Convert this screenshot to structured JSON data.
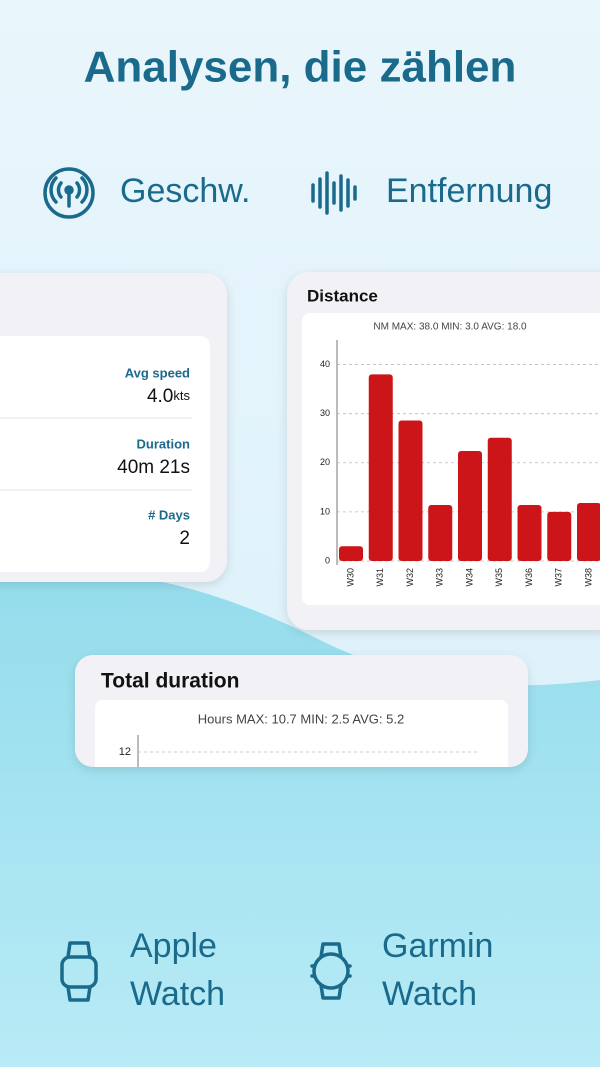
{
  "header": {
    "title": "Analysen, die zählen"
  },
  "features": [
    {
      "label": "Geschw."
    },
    {
      "label": "Entfernung"
    }
  ],
  "stats_card": {
    "rows": [
      {
        "label": "Avg speed",
        "value": "4.0",
        "unit": "kts"
      },
      {
        "label": "Duration",
        "value": "40m 21s"
      },
      {
        "label": "# Days",
        "value": "2"
      }
    ]
  },
  "distance_card": {
    "title": "Distance",
    "chart": {
      "type": "bar",
      "subtitle": "NM MAX: 38.0 MIN: 3.0 AVG: 18.0",
      "categories": [
        "W30",
        "W31",
        "W32",
        "W33",
        "W34",
        "W35",
        "W36",
        "W37",
        "W38"
      ],
      "values": [
        3,
        38,
        28.6,
        11.4,
        22.4,
        25.1,
        11.4,
        10,
        11.8
      ],
      "color": "#cc1518",
      "ylim": [
        0,
        45
      ],
      "yticks": [
        0,
        10,
        20,
        30,
        40
      ],
      "grid": true
    }
  },
  "duration_card": {
    "title": "Total duration",
    "chart": {
      "type": "bar",
      "subtitle": "Hours MAX: 10.7 MIN: 2.5 AVG: 5.2",
      "ylim": [
        0,
        13
      ],
      "yticks": [
        12
      ],
      "grid": true
    }
  },
  "watches": [
    {
      "lines": [
        "Apple",
        "Watch"
      ]
    },
    {
      "lines": [
        "Garmin",
        "Watch"
      ]
    }
  ]
}
